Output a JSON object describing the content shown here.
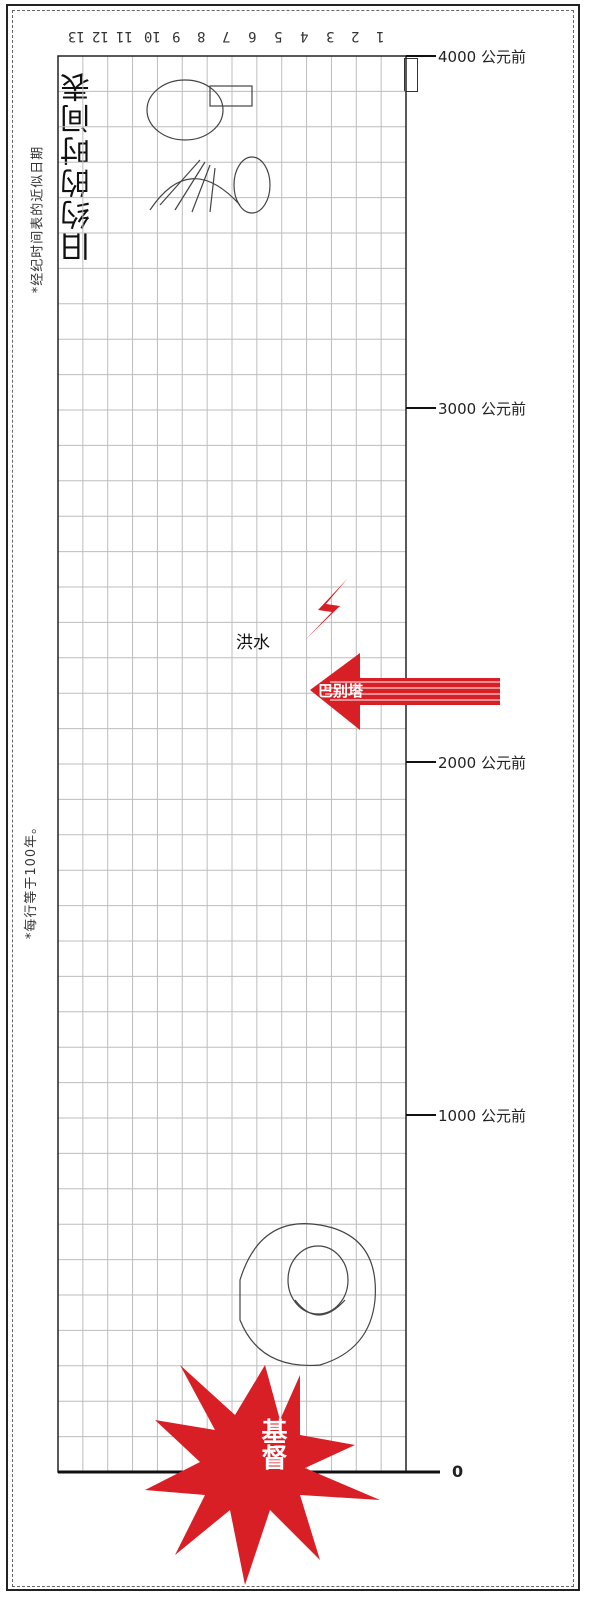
{
  "title": "旧约的时间表",
  "side_notes": {
    "top": "*经纪时间表的近似日期",
    "middle": "*每行等于100年。"
  },
  "column_numbers": [
    "13",
    "12",
    "11",
    "10",
    "9",
    "8",
    "7",
    "6",
    "5",
    "4",
    "3",
    "2",
    "1"
  ],
  "time_labels": [
    {
      "label": "4000 公元前"
    },
    {
      "label": "3000 公元前"
    },
    {
      "label": "2000 公元前"
    },
    {
      "label": "1000 公元前"
    }
  ],
  "zero_label": "0",
  "events": {
    "flood": "洪水",
    "babel": "巴别塔",
    "christ": "基督"
  },
  "colors": {
    "accent_red": "#d81f26",
    "grid_line": "#bdbdbd",
    "frame": "#222222"
  }
}
